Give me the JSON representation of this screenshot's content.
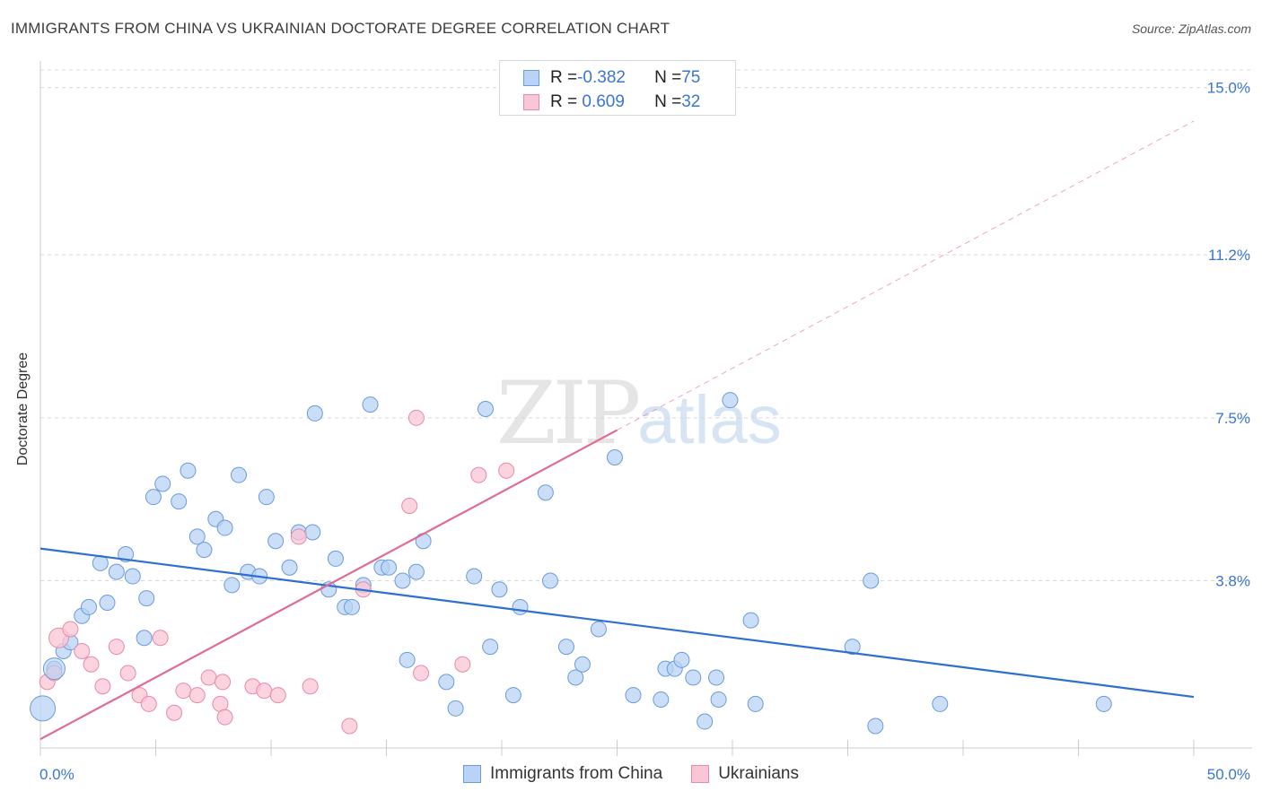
{
  "title": "IMMIGRANTS FROM CHINA VS UKRAINIAN DOCTORATE DEGREE CORRELATION CHART",
  "source": "Source: ZipAtlas.com",
  "watermark": {
    "zip": "ZIP",
    "atlas": "atlas"
  },
  "legend_top": [
    {
      "label_r": "R = ",
      "r": "-0.382",
      "label_n": "N = ",
      "n": "75"
    },
    {
      "label_r": "R = ",
      "r": " 0.609",
      "label_n": "N = ",
      "n": "32"
    }
  ],
  "colors": {
    "china_fill": "#b8d3f5",
    "china_stroke": "#6b9bd8",
    "china_line": "#2e6fd0",
    "ukr_fill": "#f9c6d6",
    "ukr_stroke": "#e88aa8",
    "ukr_line": "#e06b94",
    "tick_label": "#3a76d0",
    "grid": "#d8d8d8"
  },
  "chart_data": {
    "type": "scatter",
    "title": "IMMIGRANTS FROM CHINA VS UKRAINIAN DOCTORATE DEGREE CORRELATION CHART",
    "xlabel": "",
    "ylabel": "Doctorate Degree",
    "xlim": [
      0,
      50
    ],
    "ylim": [
      0,
      15.4
    ],
    "x_tick_labels": [
      "0.0%",
      "50.0%"
    ],
    "y_ticks": [
      3.8,
      7.5,
      11.2,
      15.0
    ],
    "y_tick_labels": [
      "3.8%",
      "7.5%",
      "11.2%",
      "15.0%"
    ],
    "grid": true,
    "legend_position": "bottom",
    "series": [
      {
        "name": "Immigrants from China",
        "points": [
          [
            0.1,
            0.9
          ],
          [
            0.6,
            1.8
          ],
          [
            1.0,
            2.2
          ],
          [
            1.3,
            2.4
          ],
          [
            1.8,
            3.0
          ],
          [
            2.1,
            3.2
          ],
          [
            2.6,
            4.2
          ],
          [
            2.9,
            3.3
          ],
          [
            3.3,
            4.0
          ],
          [
            3.7,
            4.4
          ],
          [
            4.0,
            3.9
          ],
          [
            4.5,
            2.5
          ],
          [
            4.6,
            3.4
          ],
          [
            4.9,
            5.7
          ],
          [
            5.3,
            6.0
          ],
          [
            6.0,
            5.6
          ],
          [
            6.4,
            6.3
          ],
          [
            6.8,
            4.8
          ],
          [
            7.1,
            4.5
          ],
          [
            7.6,
            5.2
          ],
          [
            8.0,
            5.0
          ],
          [
            8.3,
            3.7
          ],
          [
            8.6,
            6.2
          ],
          [
            9.0,
            4.0
          ],
          [
            9.5,
            3.9
          ],
          [
            9.8,
            5.7
          ],
          [
            10.2,
            4.7
          ],
          [
            10.8,
            4.1
          ],
          [
            11.2,
            4.9
          ],
          [
            11.8,
            4.9
          ],
          [
            11.9,
            7.6
          ],
          [
            12.5,
            3.6
          ],
          [
            12.8,
            4.3
          ],
          [
            13.2,
            3.2
          ],
          [
            13.5,
            3.2
          ],
          [
            14.0,
            3.7
          ],
          [
            14.3,
            7.8
          ],
          [
            14.8,
            4.1
          ],
          [
            15.1,
            4.1
          ],
          [
            15.7,
            3.8
          ],
          [
            15.9,
            2.0
          ],
          [
            16.3,
            4.0
          ],
          [
            16.6,
            4.7
          ],
          [
            17.6,
            1.5
          ],
          [
            18.0,
            0.9
          ],
          [
            18.8,
            3.9
          ],
          [
            19.3,
            7.7
          ],
          [
            19.5,
            2.3
          ],
          [
            19.9,
            3.6
          ],
          [
            20.5,
            1.2
          ],
          [
            20.8,
            3.2
          ],
          [
            21.9,
            5.8
          ],
          [
            22.1,
            3.8
          ],
          [
            22.8,
            2.3
          ],
          [
            23.2,
            1.6
          ],
          [
            23.5,
            1.9
          ],
          [
            24.2,
            2.7
          ],
          [
            24.9,
            6.6
          ],
          [
            25.7,
            1.2
          ],
          [
            26.9,
            1.1
          ],
          [
            27.1,
            1.8
          ],
          [
            27.5,
            1.8
          ],
          [
            27.8,
            2.0
          ],
          [
            28.3,
            1.6
          ],
          [
            28.8,
            0.6
          ],
          [
            29.3,
            1.6
          ],
          [
            29.4,
            1.1
          ],
          [
            29.9,
            7.9
          ],
          [
            30.8,
            2.9
          ],
          [
            31.0,
            1.0
          ],
          [
            35.2,
            2.3
          ],
          [
            36.0,
            3.8
          ],
          [
            36.2,
            0.5
          ],
          [
            39.0,
            1.0
          ],
          [
            46.1,
            1.0
          ]
        ],
        "trend": {
          "x0": 0,
          "y0": 4.53,
          "x1": 50,
          "y1": 1.16
        }
      },
      {
        "name": "Ukrainians",
        "points": [
          [
            0.3,
            1.5
          ],
          [
            0.6,
            1.7
          ],
          [
            0.8,
            2.5
          ],
          [
            1.3,
            2.7
          ],
          [
            1.8,
            2.2
          ],
          [
            2.2,
            1.9
          ],
          [
            2.7,
            1.4
          ],
          [
            3.3,
            2.3
          ],
          [
            3.8,
            1.7
          ],
          [
            4.3,
            1.2
          ],
          [
            4.7,
            1.0
          ],
          [
            5.2,
            2.5
          ],
          [
            5.8,
            0.8
          ],
          [
            6.2,
            1.3
          ],
          [
            6.8,
            1.2
          ],
          [
            7.3,
            1.6
          ],
          [
            7.8,
            1.0
          ],
          [
            8.0,
            0.7
          ],
          [
            7.9,
            1.5
          ],
          [
            9.2,
            1.4
          ],
          [
            9.7,
            1.3
          ],
          [
            10.3,
            1.2
          ],
          [
            11.2,
            4.8
          ],
          [
            11.7,
            1.4
          ],
          [
            14.0,
            3.6
          ],
          [
            16.0,
            5.5
          ],
          [
            16.3,
            7.5
          ],
          [
            16.5,
            1.7
          ],
          [
            18.3,
            1.9
          ],
          [
            19.0,
            6.2
          ],
          [
            20.2,
            6.3
          ],
          [
            13.4,
            0.5
          ]
        ],
        "trend": {
          "x0": 0,
          "y0": 0.2,
          "x1": 25,
          "y1": 7.22
        },
        "trend_extension": {
          "x0": 25,
          "y0": 7.22,
          "x1": 50,
          "y1": 14.24
        }
      }
    ]
  }
}
